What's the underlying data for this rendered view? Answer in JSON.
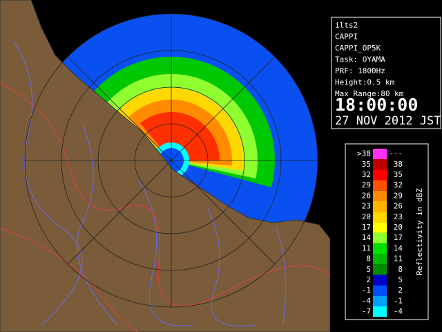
{
  "info": {
    "lines": [
      "ilts2",
      "CAPPI",
      "CAPPI_OP5K",
      "Task: OYAMA",
      "PRF: 1800Hz",
      "Height:0.5 km",
      "Max Range:80 km"
    ],
    "time": "18:00:00",
    "date": "27 NOV 2012 JST"
  },
  "legend": {
    "title": "Reflectivity in dBZ",
    "rows": [
      {
        "low": ">38",
        "high": "---",
        "color": "#ff30ff"
      },
      {
        "low": "35",
        "high": "38",
        "color": "#c00000"
      },
      {
        "low": "32",
        "high": "35",
        "color": "#ff0000"
      },
      {
        "low": "29",
        "high": "32",
        "color": "#ff5000"
      },
      {
        "low": "26",
        "high": "29",
        "color": "#ff8c00"
      },
      {
        "low": "23",
        "high": "26",
        "color": "#ffb400"
      },
      {
        "low": "20",
        "high": "23",
        "color": "#ffd800"
      },
      {
        "low": "17",
        "high": "20",
        "color": "#ffff00"
      },
      {
        "low": "14",
        "high": "17",
        "color": "#90ff30"
      },
      {
        "low": "11",
        "high": "14",
        "color": "#00e000"
      },
      {
        "low": "8",
        "high": "11",
        "color": "#00b800"
      },
      {
        "low": "5",
        "high": "8",
        "color": "#008c00"
      },
      {
        "low": "2",
        "high": "5",
        "color": "#0000c8"
      },
      {
        "low": "-1",
        "high": "2",
        "color": "#0050ff"
      },
      {
        "low": "-4",
        "high": "-1",
        "color": "#00a0ff"
      },
      {
        "low": "-7",
        "high": "-4",
        "color": "#00ffff"
      }
    ]
  }
}
